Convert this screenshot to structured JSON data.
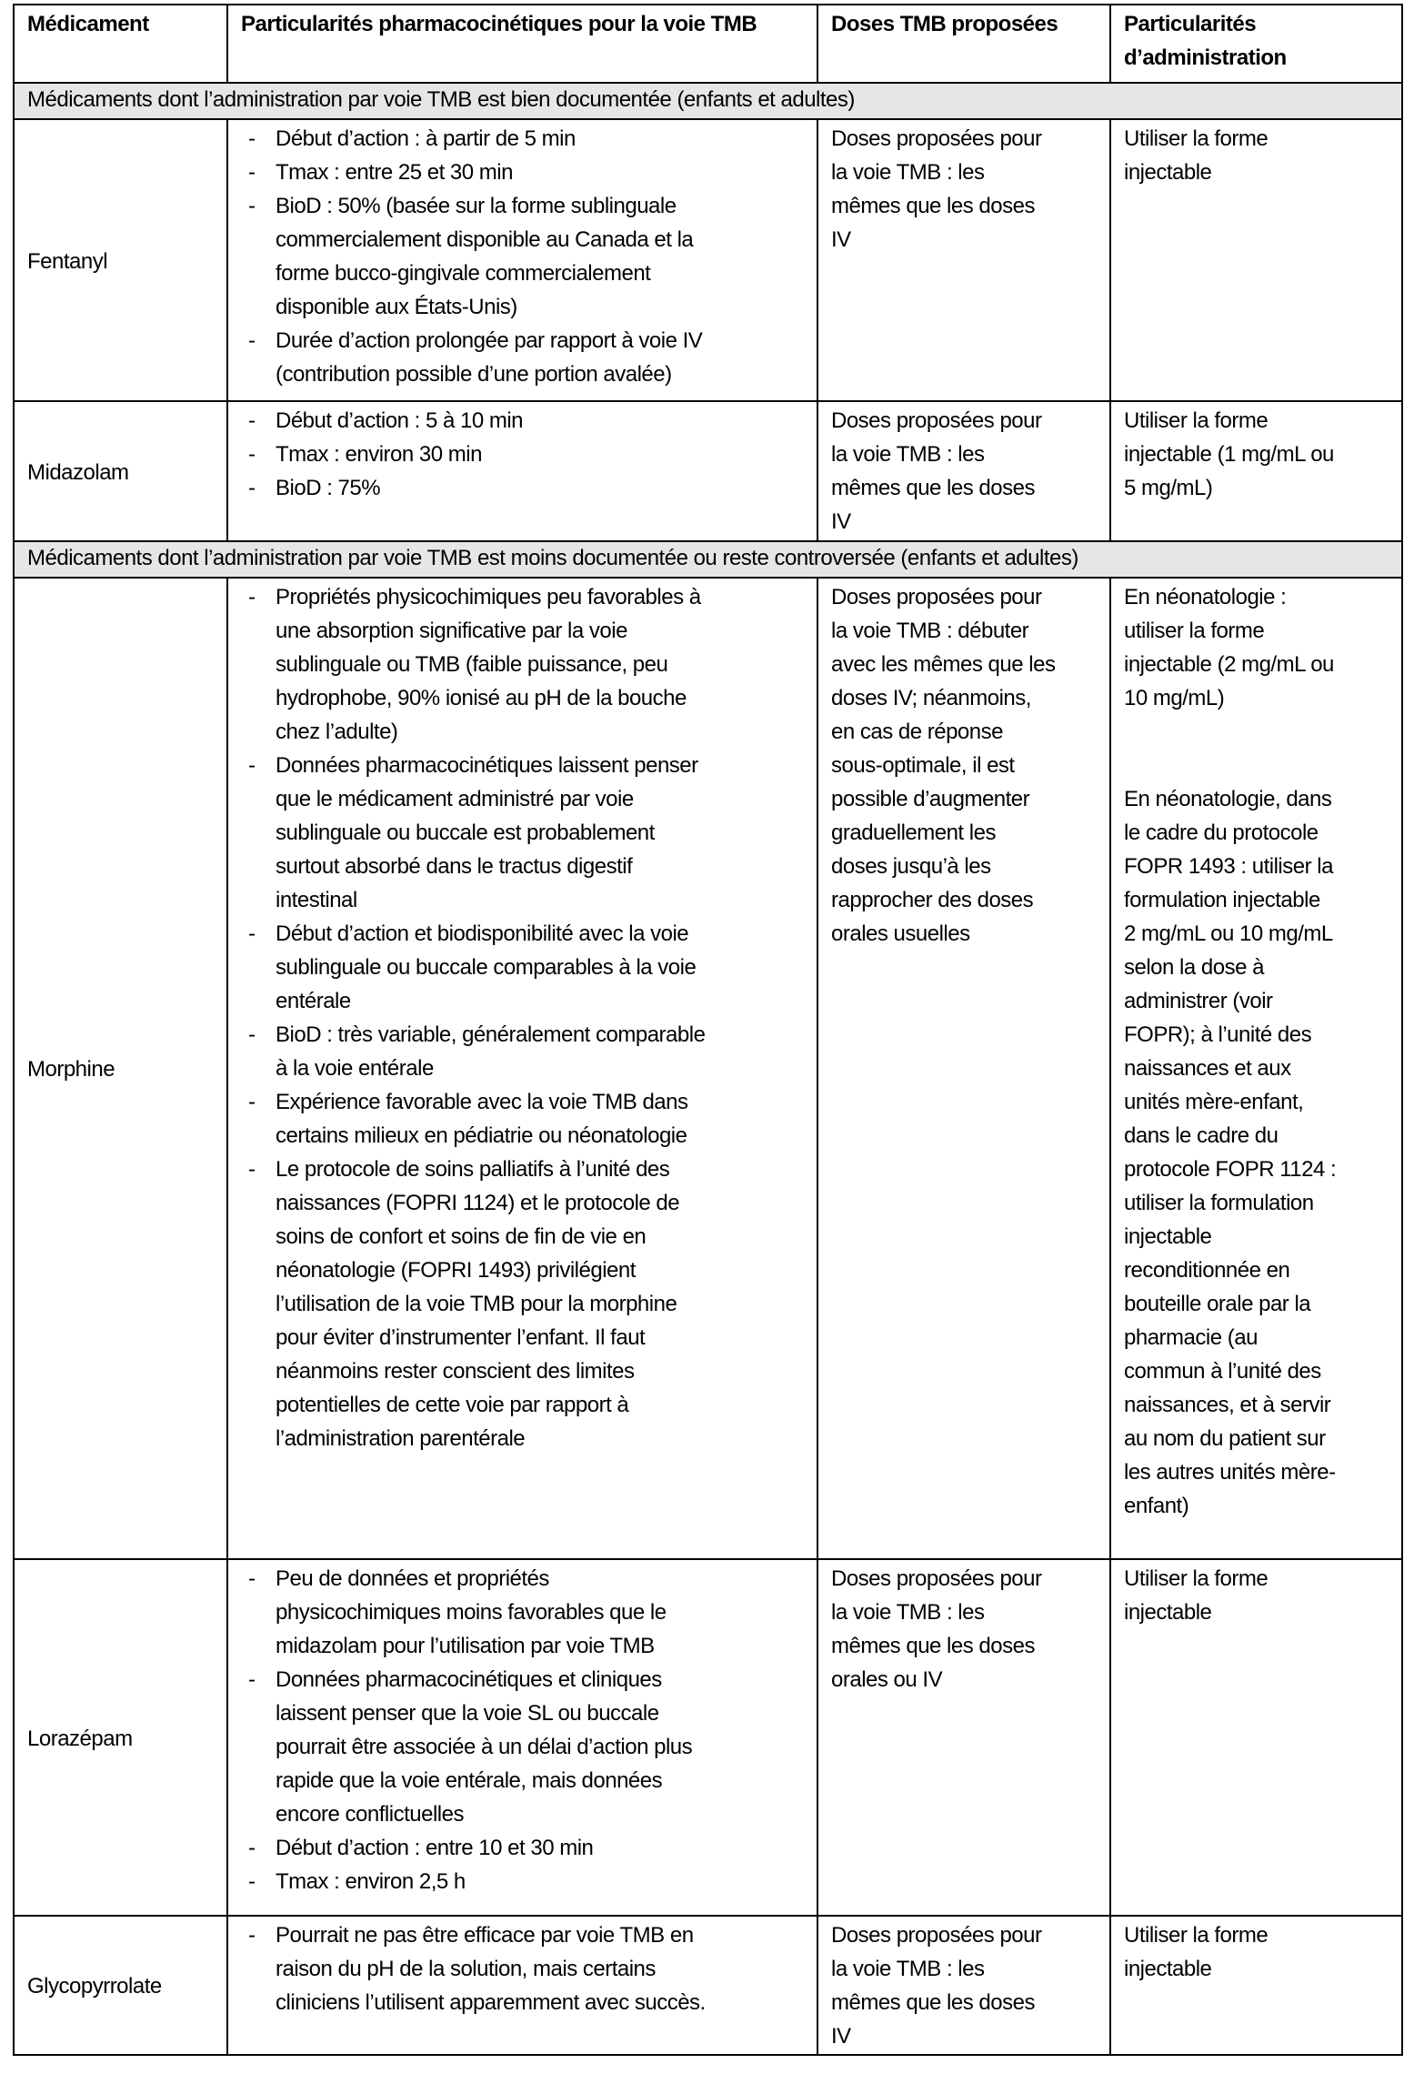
{
  "headers": [
    "Médicament",
    "Particularités pharmacocinétiques pour la voie TMB",
    "Doses TMB proposées",
    "Particularités d’administration"
  ],
  "rows": [
    {
      "section": "Médicaments dont l’administration par voie TMB est bien documentée (enfants et adultes)"
    },
    {
      "drug": "Fentanyl",
      "height": 310,
      "pk": [
        [
          "Début d’action : à partir de 5 min"
        ],
        [
          "Tmax : entre 25 et 30 min"
        ],
        [
          "BioD : 50% (basée sur la forme sublinguale",
          "commercialement disponible au Canada et la",
          "forme bucco-gingivale commercialement",
          "disponible aux États-Unis)"
        ],
        [
          "Durée d’action prolongée par rapport à voie IV",
          "(contribution possible d’une portion avalée)"
        ]
      ],
      "doses": [
        "Doses proposées pour",
        "la voie TMB : les",
        "mêmes que les doses",
        "IV"
      ],
      "admin": [
        [
          "Utiliser la forme",
          "injectable"
        ]
      ]
    },
    {
      "drug": "Midazolam",
      "height": 154,
      "pk": [
        [
          "Début d’action : 5 à 10 min"
        ],
        [
          "Tmax : environ 30 min"
        ],
        [
          "BioD : 75%"
        ]
      ],
      "doses": [
        "Doses proposées pour",
        "la voie TMB : les",
        "mêmes que les doses",
        "IV"
      ],
      "admin": [
        [
          "Utiliser la forme",
          "injectable (1 mg/mL ou",
          "5 mg/mL)"
        ]
      ]
    },
    {
      "section": "Médicaments dont l’administration par voie TMB est moins documentée ou reste controversée (enfants et adultes)"
    },
    {
      "drug": "Morphine",
      "height": 1079,
      "pk": [
        [
          "Propriétés physicochimiques peu favorables à",
          "une absorption significative par la voie",
          "sublinguale ou TMB (faible puissance, peu",
          "hydrophobe, 90% ionisé au pH de la bouche",
          "chez l’adulte)"
        ],
        [
          "Données pharmacocinétiques laissent penser",
          "que le médicament administré par voie",
          "sublinguale ou buccale est probablement",
          "surtout absorbé dans le tractus digestif",
          "intestinal"
        ],
        [
          "Début d’action et biodisponibilité avec la voie",
          "sublinguale ou buccale comparables à la voie",
          "entérale"
        ],
        [
          "BioD : très variable, généralement comparable",
          "à la voie entérale"
        ],
        [
          "Expérience favorable avec la voie TMB dans",
          "certains milieux en pédiatrie ou néonatologie"
        ],
        [
          "Le protocole de soins palliatifs à l’unité des",
          "naissances (FOPRI 1124) et le protocole de",
          "soins de confort et soins de fin de vie en",
          "néonatologie (FOPRI 1493) privilégient",
          "l’utilisation de la voie TMB pour la morphine",
          "pour éviter d’instrumenter l’enfant. Il faut",
          "néanmoins rester conscient des limites",
          "potentielles de cette voie par rapport à",
          "l’administration parentérale"
        ]
      ],
      "doses": [
        "Doses proposées pour",
        "la voie TMB : débuter",
        "avec les mêmes que les",
        "doses IV; néanmoins,",
        "en cas de réponse",
        "sous-optimale, il est",
        "possible d’augmenter",
        "graduellement les",
        "doses jusqu’à les",
        "rapprocher des doses",
        "orales usuelles"
      ],
      "admin": [
        [
          "En néonatologie :",
          "utiliser la forme",
          "injectable (2 mg/mL ou",
          "10 mg/mL)"
        ],
        [
          "En néonatologie, dans",
          "le cadre du protocole",
          "FOPR 1493 : utiliser la",
          "formulation injectable",
          "2 mg/mL ou 10 mg/mL",
          "selon la dose à",
          "administrer (voir",
          "FOPR); à l’unité des",
          "naissances et aux",
          "unités mère-enfant,",
          "dans le cadre du",
          "protocole FOPR 1124 :",
          "utiliser la formulation",
          "injectable",
          "reconditionnée en",
          "bouteille orale par la",
          "pharmacie (au",
          "commun à l’unité des",
          "naissances, et à servir",
          "au nom du patient sur",
          "les autres unités mère-",
          "enfant)"
        ]
      ]
    },
    {
      "drug": "Lorazépam",
      "height": 392,
      "pk": [
        [
          "Peu de données et propriétés",
          "physicochimiques moins favorables que le",
          "midazolam pour l’utilisation par voie TMB"
        ],
        [
          "Données pharmacocinétiques et cliniques",
          "laissent penser que la voie SL ou buccale",
          "pourrait être associée à un délai d’action plus",
          "rapide que la voie entérale, mais données",
          "encore conflictuelles"
        ],
        [
          "Début d’action : entre 10 et 30 min"
        ],
        [
          "Tmax : environ 2,5 h"
        ]
      ],
      "doses": [
        "Doses proposées pour",
        "la voie TMB : les",
        "mêmes que les doses",
        "orales ou IV"
      ],
      "admin": [
        [
          "Utiliser la forme",
          "injectable"
        ]
      ]
    },
    {
      "drug": "Glycopyrrolate",
      "height": 153,
      "pk": [
        [
          "Pourrait ne pas être efficace par voie TMB en",
          "raison du pH de la solution, mais certains",
          "cliniciens l’utilisent apparemment avec succès."
        ]
      ],
      "doses": [
        "Doses proposées pour",
        "la voie TMB : les",
        "mêmes que les doses",
        "IV"
      ],
      "admin": [
        [
          "Utiliser la forme",
          "injectable"
        ]
      ]
    }
  ]
}
